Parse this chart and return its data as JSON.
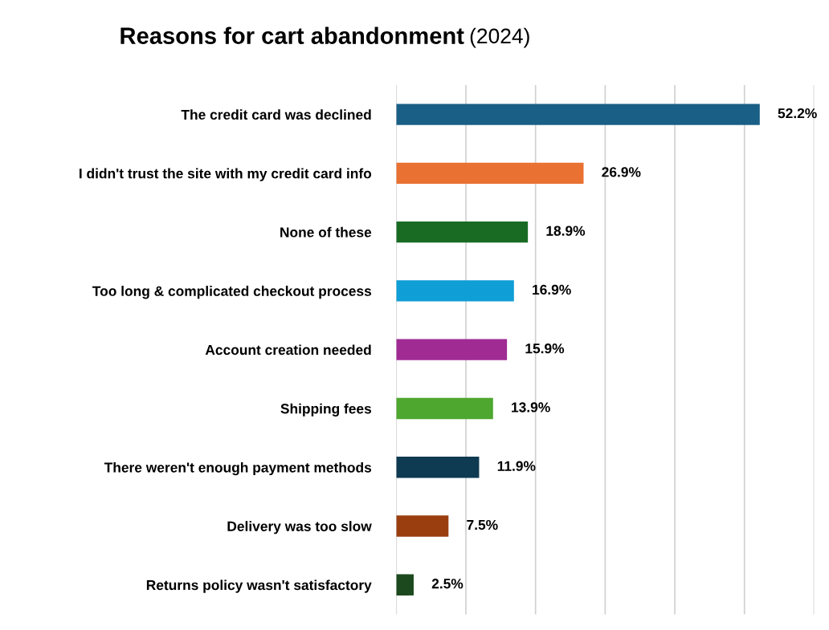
{
  "chart_data": {
    "type": "bar",
    "orientation": "horizontal",
    "title": "Reasons for cart abandonment",
    "subtitle": "(2024)",
    "categories": [
      "The credit card was declined",
      "I didn't trust the site with my credit card info",
      "None of these",
      "Too long & complicated checkout process",
      "Account creation needed",
      "Shipping fees",
      "There weren't enough payment methods",
      "Delivery was too slow",
      "Returns policy wasn't satisfactory"
    ],
    "values": [
      52.2,
      26.9,
      18.9,
      16.9,
      15.9,
      13.9,
      11.9,
      7.5,
      2.5
    ],
    "value_labels": [
      "52.2%",
      "26.9%",
      "18.9%",
      "16.9%",
      "15.9%",
      "13.9%",
      "11.9%",
      "7.5%",
      "2.5%"
    ],
    "colors": [
      "#1a5f85",
      "#e97132",
      "#196b24",
      "#0f9ed5",
      "#a02b93",
      "#4ea72e",
      "#0e3a52",
      "#9a3e10",
      "#1c4a1e"
    ],
    "xlim": [
      0,
      60
    ],
    "xticks": [
      {
        "value": 0,
        "label": null
      },
      {
        "value": 10,
        "label": null
      },
      {
        "value": 20,
        "label": null
      },
      {
        "value": 30,
        "label": null
      },
      {
        "value": 40,
        "label": null
      },
      {
        "value": 50,
        "label": null
      },
      {
        "value": 60,
        "label": null
      }
    ],
    "grid": "x",
    "tick_labels": "y",
    "legend": false
  }
}
